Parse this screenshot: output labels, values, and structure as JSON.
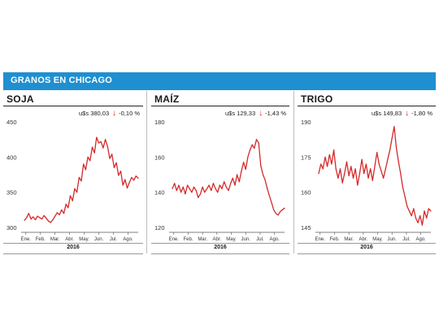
{
  "header": {
    "title": "GRANOS EN CHICAGO"
  },
  "colors": {
    "header_bg": "#1f8fd0",
    "series_line": "#d42a2a",
    "arrow": "#d32121"
  },
  "chart_data": [
    {
      "type": "line",
      "title": "SOJA",
      "price": "u$s 380,03",
      "change": "-0,10 %",
      "change_icon": "down-arrow-icon",
      "ylim": [
        300,
        450
      ],
      "yticks": [
        300,
        350,
        400,
        450
      ],
      "x_tick_labels": [
        "Ene.",
        "Feb.",
        "Mar.",
        "Abr.",
        "May.",
        "Jun.",
        "Jul.",
        "Ago."
      ],
      "xlabel": "2016",
      "x": [
        0.0,
        0.15,
        0.3,
        0.45,
        0.6,
        0.75,
        0.9,
        1.05,
        1.2,
        1.35,
        1.5,
        1.65,
        1.8,
        1.95,
        2.1,
        2.25,
        2.4,
        2.55,
        2.7,
        2.85,
        3.0,
        3.15,
        3.3,
        3.45,
        3.6,
        3.75,
        3.9,
        4.05,
        4.2,
        4.35,
        4.5,
        4.65,
        4.8,
        4.95,
        5.1,
        5.25,
        5.4,
        5.55,
        5.7,
        5.85,
        6.0,
        6.15,
        6.3,
        6.45,
        6.6,
        6.75,
        6.9,
        7.05,
        7.2,
        7.35,
        7.5,
        7.65,
        7.8
      ],
      "values": [
        310,
        314,
        320,
        312,
        315,
        311,
        316,
        314,
        312,
        317,
        313,
        309,
        307,
        311,
        316,
        321,
        318,
        325,
        320,
        333,
        328,
        345,
        338,
        355,
        350,
        371,
        366,
        390,
        382,
        400,
        395,
        414,
        406,
        428,
        420,
        422,
        413,
        425,
        415,
        398,
        404,
        385,
        392,
        374,
        380,
        360,
        368,
        356,
        364,
        371,
        367,
        373,
        370
      ]
    },
    {
      "type": "line",
      "title": "MAÍZ",
      "price": "u$s 129,33",
      "change": "-1,43 %",
      "change_icon": "down-arrow-icon",
      "ylim": [
        120,
        180
      ],
      "yticks": [
        120,
        140,
        160,
        180
      ],
      "x_tick_labels": [
        "Ene.",
        "Feb.",
        "Mar.",
        "Abr.",
        "May.",
        "Jun.",
        "Jul.",
        "Ago."
      ],
      "xlabel": "2016",
      "x": [
        0.0,
        0.15,
        0.3,
        0.45,
        0.6,
        0.75,
        0.9,
        1.05,
        1.2,
        1.35,
        1.5,
        1.65,
        1.8,
        1.95,
        2.1,
        2.25,
        2.4,
        2.55,
        2.7,
        2.85,
        3.0,
        3.15,
        3.3,
        3.45,
        3.6,
        3.75,
        3.9,
        4.05,
        4.2,
        4.35,
        4.5,
        4.65,
        4.8,
        4.95,
        5.1,
        5.25,
        5.4,
        5.55,
        5.7,
        5.85,
        6.0,
        6.15,
        6.3,
        6.45,
        6.6,
        6.75,
        6.9,
        7.05,
        7.2,
        7.35,
        7.5,
        7.65,
        7.8
      ],
      "values": [
        142,
        145,
        141,
        144,
        140,
        143,
        139,
        144,
        142,
        140,
        143,
        141,
        137,
        139,
        143,
        140,
        142,
        144,
        141,
        145,
        142,
        140,
        144,
        142,
        146,
        143,
        141,
        145,
        148,
        144,
        150,
        146,
        152,
        157,
        153,
        160,
        164,
        167,
        165,
        170,
        168,
        155,
        150,
        147,
        142,
        138,
        134,
        130,
        128,
        127,
        129,
        130,
        131
      ]
    },
    {
      "type": "line",
      "title": "TRIGO",
      "price": "u$s 149,83",
      "change": "-1,80 %",
      "change_icon": "down-arrow-icon",
      "ylim": [
        145,
        190
      ],
      "yticks": [
        145,
        160,
        175,
        190
      ],
      "x_tick_labels": [
        "Ene.",
        "Feb.",
        "Mar.",
        "Abr.",
        "May.",
        "Jun.",
        "Jul.",
        "Ago."
      ],
      "xlabel": "2016",
      "x": [
        0.0,
        0.15,
        0.3,
        0.45,
        0.6,
        0.75,
        0.9,
        1.05,
        1.2,
        1.35,
        1.5,
        1.65,
        1.8,
        1.95,
        2.1,
        2.25,
        2.4,
        2.55,
        2.7,
        2.85,
        3.0,
        3.15,
        3.3,
        3.45,
        3.6,
        3.75,
        3.9,
        4.05,
        4.2,
        4.35,
        4.5,
        4.65,
        4.8,
        4.95,
        5.1,
        5.25,
        5.4,
        5.55,
        5.7,
        5.85,
        6.0,
        6.15,
        6.3,
        6.45,
        6.6,
        6.75,
        6.9,
        7.05,
        7.2,
        7.35,
        7.5,
        7.65,
        7.8
      ],
      "values": [
        168,
        172,
        170,
        175,
        171,
        176,
        172,
        178,
        170,
        166,
        170,
        164,
        168,
        173,
        167,
        171,
        166,
        170,
        163,
        168,
        174,
        168,
        172,
        166,
        170,
        165,
        171,
        177,
        172,
        169,
        166,
        170,
        174,
        178,
        183,
        188,
        179,
        173,
        168,
        162,
        158,
        154,
        152,
        150,
        153,
        149,
        147,
        150,
        146,
        152,
        149,
        153,
        152
      ]
    }
  ]
}
